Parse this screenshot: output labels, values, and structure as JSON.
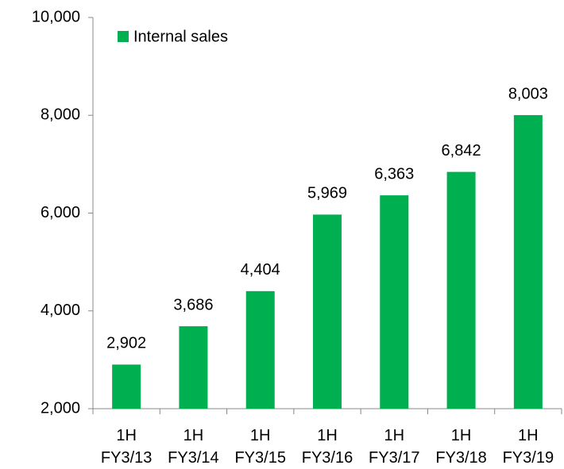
{
  "chart_data": {
    "type": "bar",
    "categories": [
      "1H\nFY3/13",
      "1H\nFY3/14",
      "1H\nFY3/15",
      "1H\nFY3/16",
      "1H\nFY3/17",
      "1H\nFY3/18",
      "1H\nFY3/19"
    ],
    "series": [
      {
        "name": "Internal sales",
        "color": "#00b050",
        "values": [
          2902,
          3686,
          4404,
          5969,
          6363,
          6842,
          8003
        ],
        "value_labels": [
          "2,902",
          "3,686",
          "4,404",
          "5,969",
          "6,363",
          "6,842",
          "8,003"
        ]
      }
    ],
    "ylim": [
      2000,
      10000
    ],
    "yticks": [
      {
        "value": 2000,
        "label": "2,000"
      },
      {
        "value": 4000,
        "label": "4,000"
      },
      {
        "value": 6000,
        "label": "6,000"
      },
      {
        "value": 8000,
        "label": "8,000"
      },
      {
        "value": 10000,
        "label": "10,000"
      }
    ],
    "grid": false,
    "legend": "top-left"
  }
}
